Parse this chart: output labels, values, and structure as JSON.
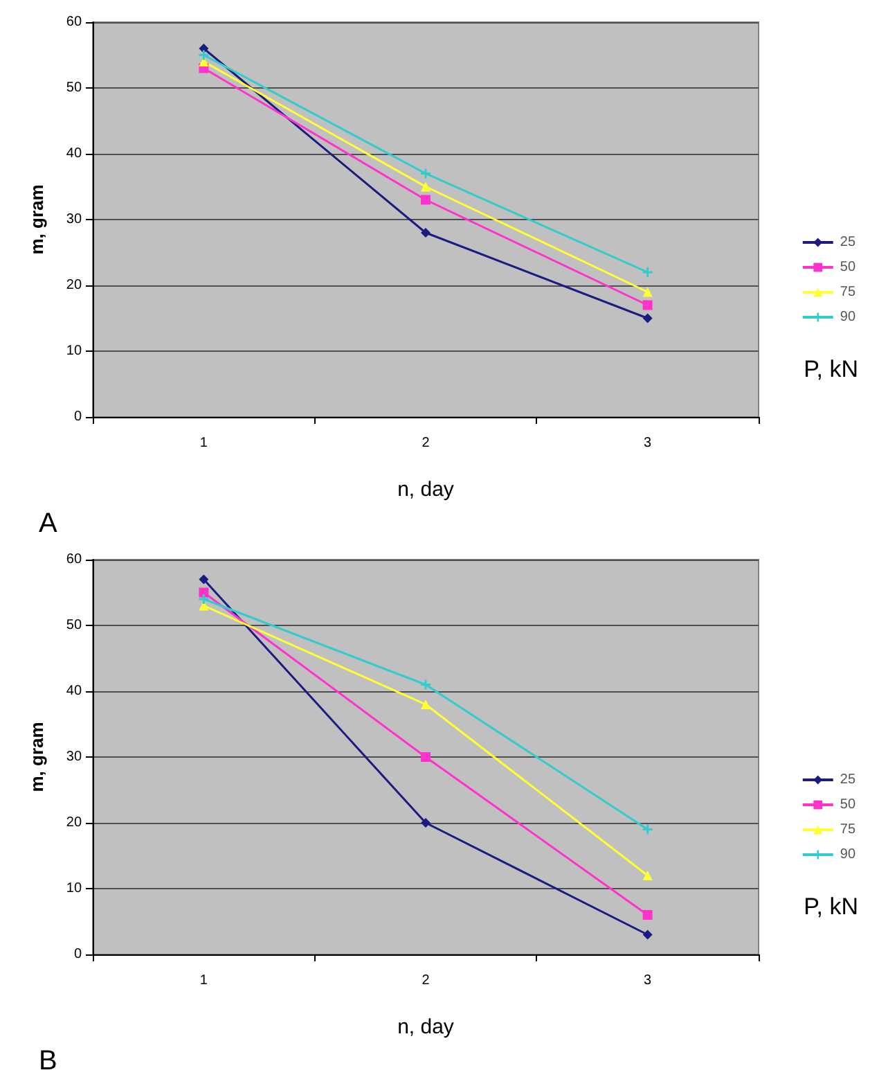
{
  "chart_data": [
    {
      "type": "line",
      "categories": [
        "1",
        "2",
        "3"
      ],
      "xlabel": "n, day",
      "ylabel": "m, gram",
      "legend_title": "P, kN",
      "annotations": [
        "A"
      ],
      "ylim": [
        0,
        60
      ],
      "yticks": [
        0,
        10,
        20,
        30,
        40,
        50,
        60
      ],
      "grid": "y",
      "legend": "right",
      "series": [
        {
          "name": "25",
          "color": "#1c1c80",
          "marker": "diamond",
          "values": [
            56,
            28,
            15
          ]
        },
        {
          "name": "50",
          "color": "#ff33cc",
          "marker": "square",
          "values": [
            53,
            33,
            17
          ]
        },
        {
          "name": "75",
          "color": "#ffff33",
          "marker": "triangle",
          "values": [
            54,
            35,
            19
          ]
        },
        {
          "name": "90",
          "color": "#33cccc",
          "marker": "cross",
          "values": [
            55,
            37,
            22
          ]
        }
      ]
    },
    {
      "type": "line",
      "categories": [
        "1",
        "2",
        "3"
      ],
      "xlabel": "n, day",
      "ylabel": "m, gram",
      "legend_title": "P, kN",
      "annotations": [
        "B"
      ],
      "ylim": [
        0,
        60
      ],
      "yticks": [
        0,
        10,
        20,
        30,
        40,
        50,
        60
      ],
      "grid": "y",
      "legend": "right",
      "series": [
        {
          "name": "25",
          "color": "#1c1c80",
          "marker": "diamond",
          "values": [
            57,
            20,
            3
          ]
        },
        {
          "name": "50",
          "color": "#ff33cc",
          "marker": "square",
          "values": [
            55,
            30,
            6
          ]
        },
        {
          "name": "75",
          "color": "#ffff33",
          "marker": "triangle",
          "values": [
            53,
            38,
            12
          ]
        },
        {
          "name": "90",
          "color": "#33cccc",
          "marker": "cross",
          "values": [
            54,
            41,
            19
          ]
        }
      ]
    }
  ]
}
